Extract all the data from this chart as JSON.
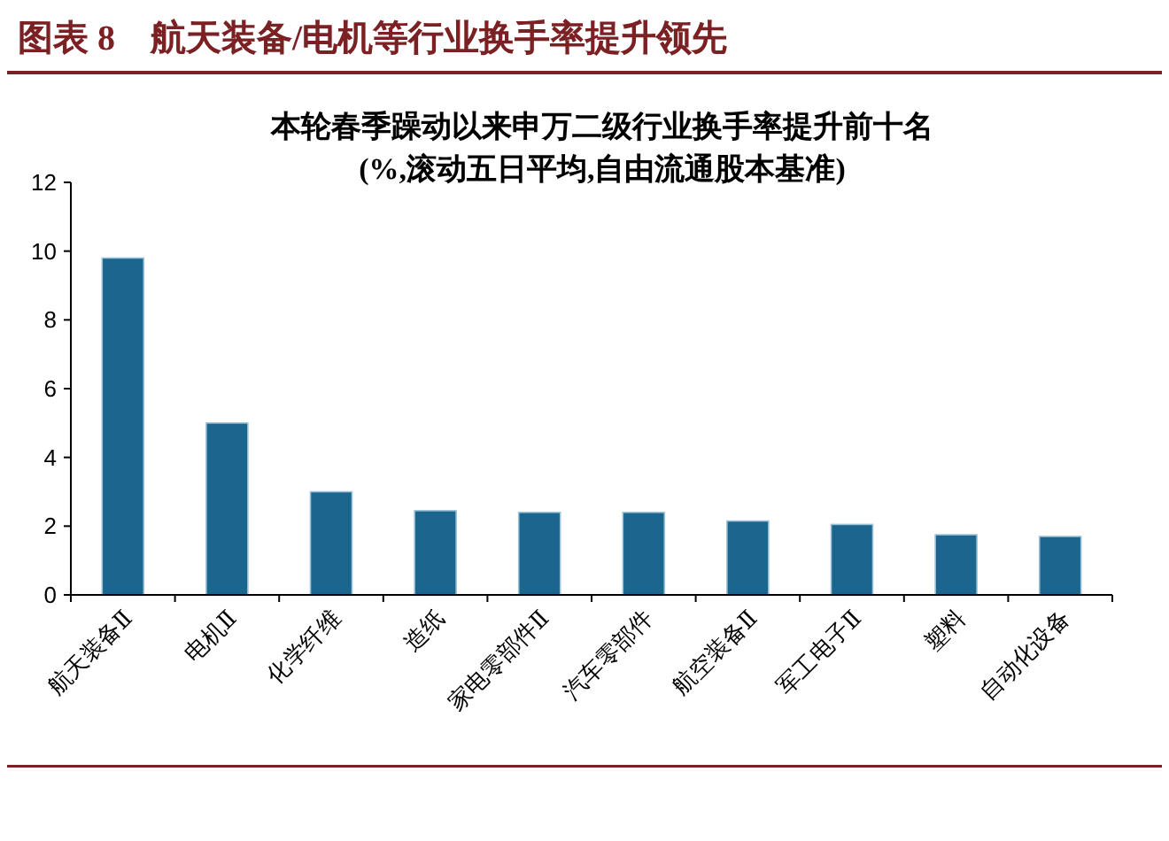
{
  "chart_data": {
    "type": "bar",
    "title": "本轮春季躁动以来申万二级行业换手率提升前十名",
    "subtitle": "(%,滚动五日平均,自由流通股本基准)",
    "annotations": [
      "图表 8　航天装备/电机等行业换手率提升领先"
    ],
    "categories": [
      "航天装备Ⅱ",
      "电机Ⅱ",
      "化学纤维",
      "造纸",
      "家电零部件Ⅱ",
      "汽车零部件",
      "航空装备Ⅱ",
      "军工电子Ⅱ",
      "塑料",
      "自动化设备"
    ],
    "values": [
      9.8,
      5.0,
      3.0,
      2.45,
      2.4,
      2.4,
      2.15,
      2.05,
      1.75,
      1.7
    ],
    "color": "#1b668e",
    "ylim": [
      0,
      12
    ],
    "yticks": [
      0,
      2,
      4,
      6,
      8,
      10,
      12
    ]
  }
}
